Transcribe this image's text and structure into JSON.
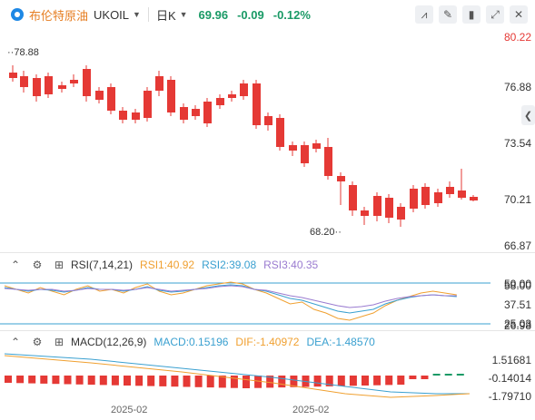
{
  "header": {
    "name": "布伦特原油",
    "code": "UKOIL",
    "period": "日K",
    "price": "69.96",
    "change": "-0.09",
    "change_pct": "-0.12%"
  },
  "toolbar": {
    "icons": [
      "chart-type-icon",
      "draw-icon",
      "candle-style-icon",
      "fullscreen-icon",
      "close-icon"
    ],
    "glyphs": [
      "⩘",
      "✎",
      "▮",
      "⤢",
      "✕"
    ]
  },
  "price_axis": {
    "labels": [
      "80.22",
      "76.88",
      "73.54",
      "70.21",
      "66.87"
    ],
    "top_label": "80.22"
  },
  "annotations": {
    "high": "78.88",
    "low": "68.20"
  },
  "rsi": {
    "name": "RSI(7,14,21)",
    "rsi1": "RSI1:40.92",
    "rsi2": "RSI2:39.08",
    "rsi3": "RSI3:40.35",
    "axis_labels": [
      "50.00",
      "37.51",
      "25.03"
    ],
    "overlap_labels": [
      "58.00",
      "26.98"
    ]
  },
  "macd": {
    "name": "MACD(12,26,9)",
    "macd": "MACD:0.15196",
    "dif": "DIF:-1.40972",
    "dea": "DEA:-1.48570",
    "axis_labels": [
      "1.51681",
      "-0.14014",
      "-1.79710"
    ]
  },
  "dates": [
    "2025-02",
    "2025-02"
  ],
  "colors": {
    "up": "#1a9a66",
    "down": "#e53935",
    "rsi1": "#f0a030",
    "rsi2": "#3aa0d0",
    "rsi3": "#9a7bd0"
  }
}
